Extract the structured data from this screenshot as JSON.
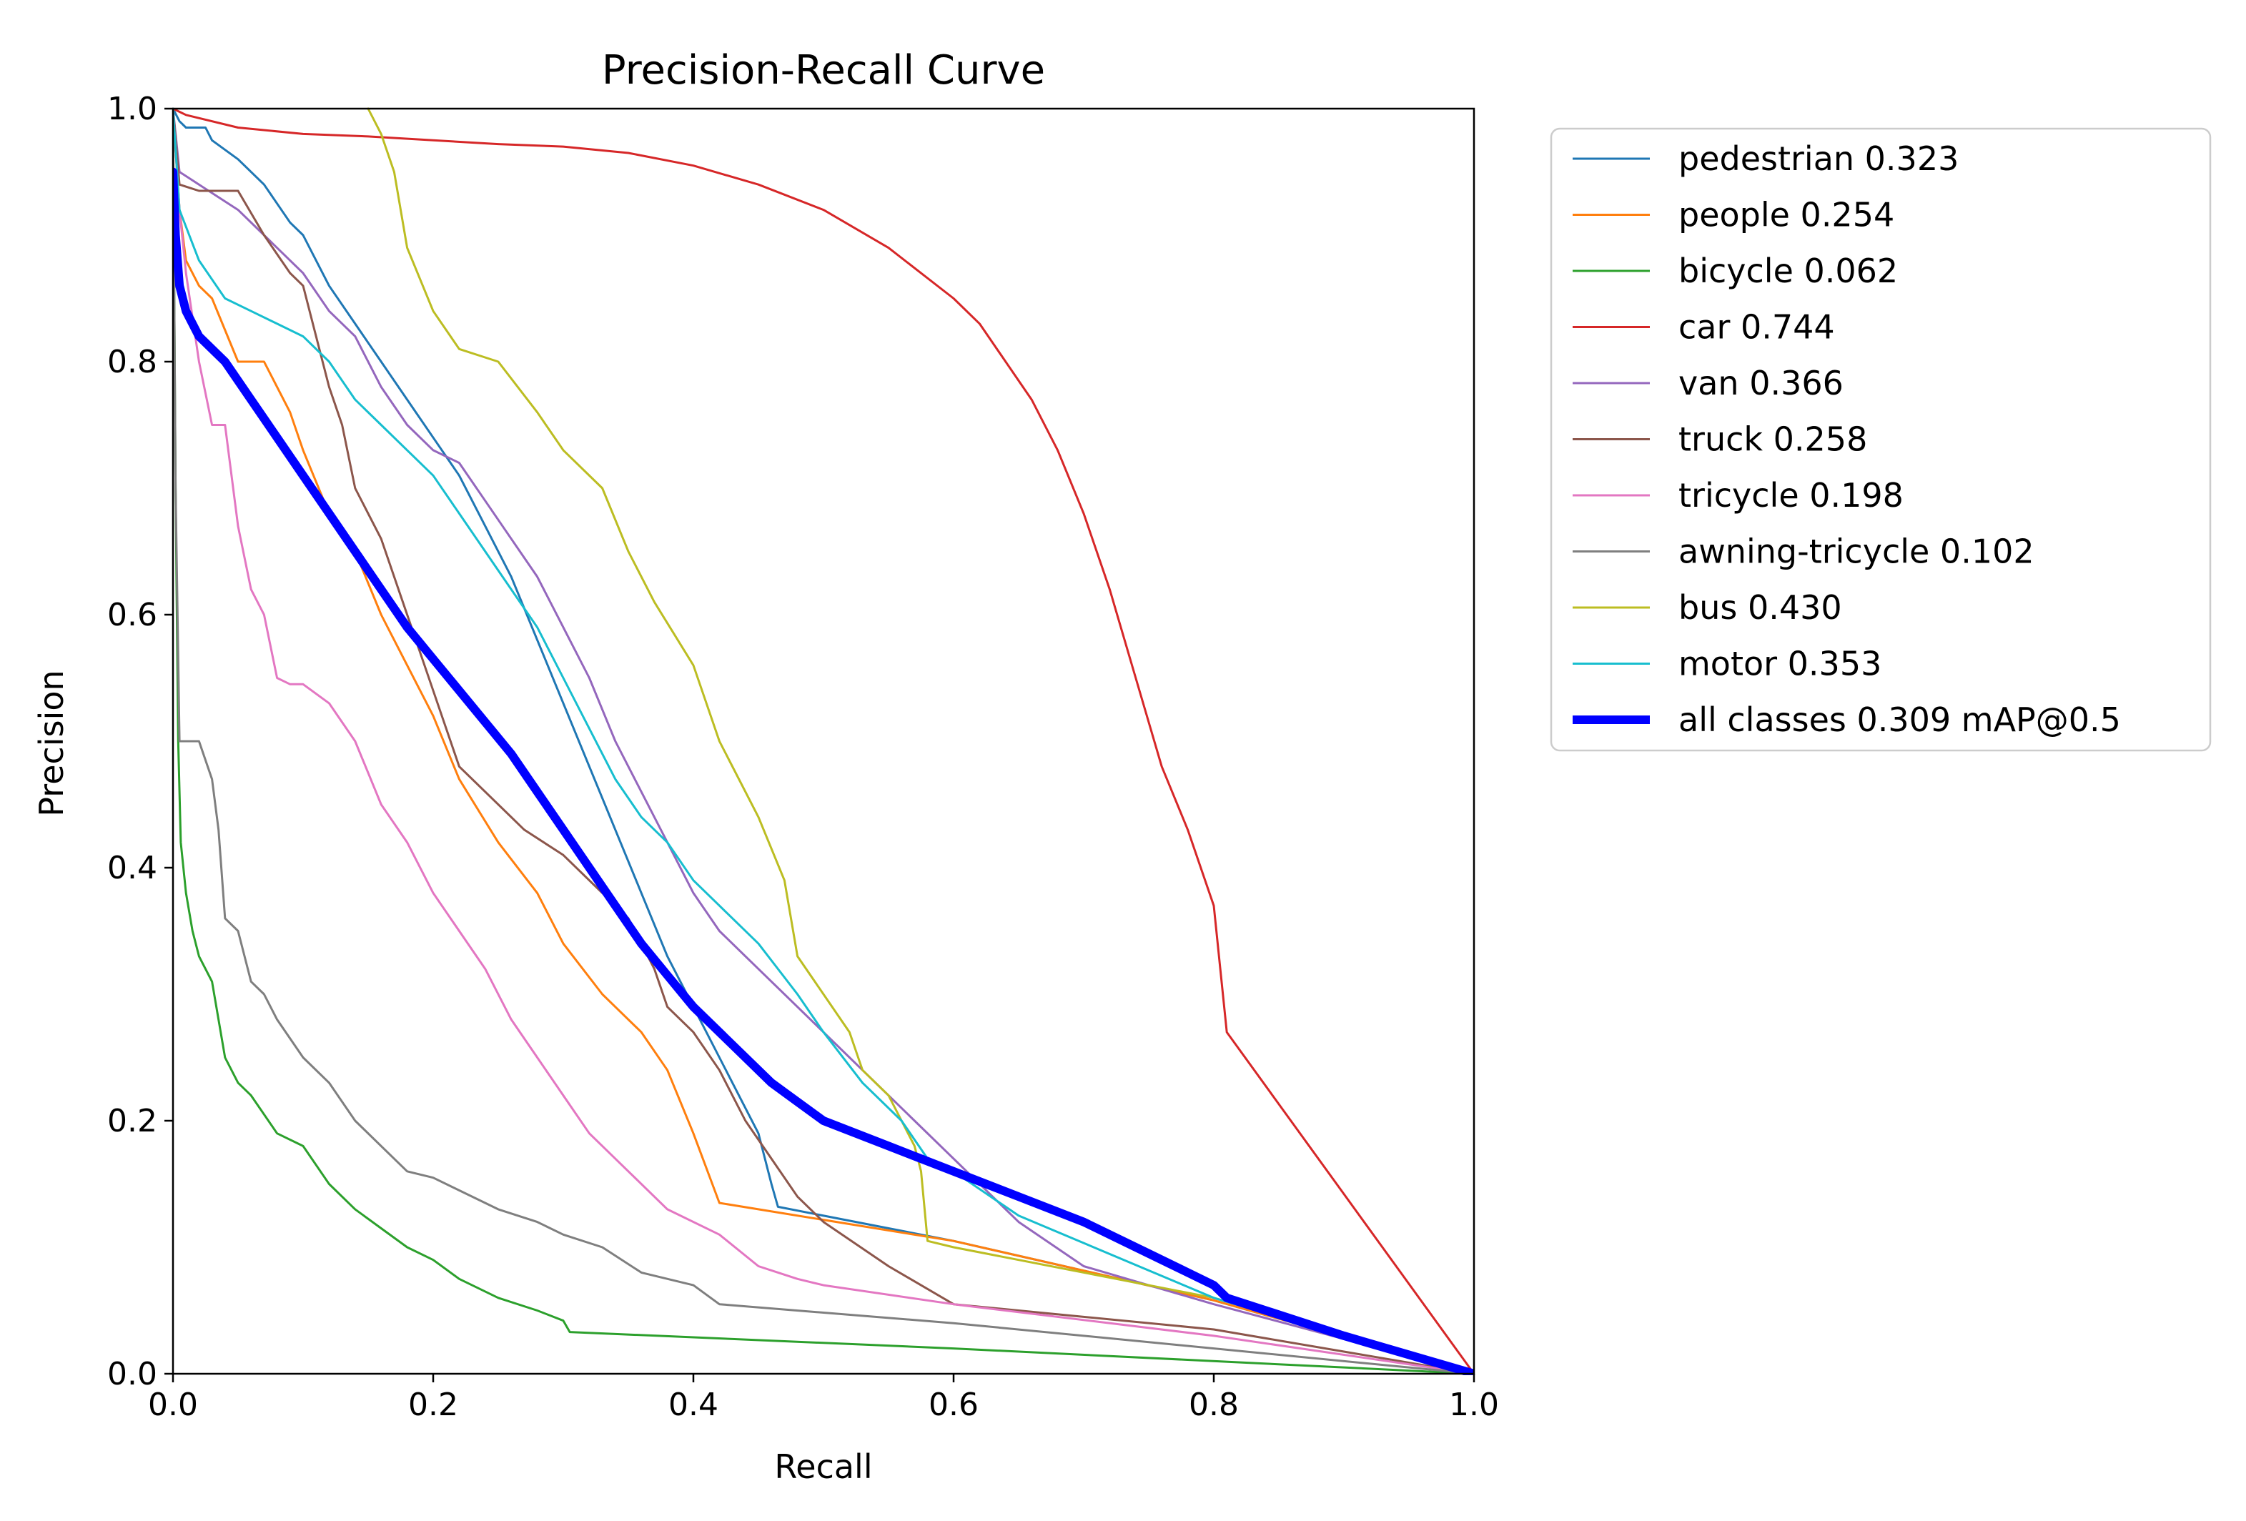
{
  "chart_data": {
    "type": "line",
    "title": "Precision-Recall Curve",
    "xlabel": "Recall",
    "ylabel": "Precision",
    "xlim": [
      0,
      1
    ],
    "ylim": [
      0,
      1
    ],
    "xticks": [
      0.0,
      0.2,
      0.4,
      0.6,
      0.8,
      1.0
    ],
    "yticks": [
      0.0,
      0.2,
      0.4,
      0.6,
      0.8,
      1.0
    ],
    "xtick_labels": [
      "0.0",
      "0.2",
      "0.4",
      "0.6",
      "0.8",
      "1.0"
    ],
    "ytick_labels": [
      "0.0",
      "0.2",
      "0.4",
      "0.6",
      "0.8",
      "1.0"
    ],
    "grid": false,
    "legend_position": "outside-right-top",
    "series": [
      {
        "name": "pedestrian",
        "legend_label": "pedestrian 0.323",
        "color": "#1f77b4",
        "emphasis": false,
        "x": [
          0.0,
          0.005,
          0.01,
          0.025,
          0.03,
          0.05,
          0.07,
          0.09,
          0.1,
          0.12,
          0.14,
          0.16,
          0.18,
          0.2,
          0.22,
          0.24,
          0.26,
          0.28,
          0.3,
          0.32,
          0.34,
          0.36,
          0.38,
          0.4,
          0.42,
          0.44,
          0.45,
          0.46,
          0.465,
          0.6,
          0.8,
          1.0
        ],
        "y": [
          1.0,
          0.99,
          0.985,
          0.985,
          0.975,
          0.96,
          0.94,
          0.91,
          0.9,
          0.86,
          0.83,
          0.8,
          0.77,
          0.74,
          0.71,
          0.67,
          0.63,
          0.58,
          0.53,
          0.48,
          0.43,
          0.38,
          0.33,
          0.29,
          0.25,
          0.21,
          0.19,
          0.15,
          0.132,
          0.105,
          0.058,
          0.0
        ]
      },
      {
        "name": "people",
        "legend_label": "people 0.254",
        "color": "#ff7f0e",
        "emphasis": false,
        "x": [
          0.0,
          0.005,
          0.01,
          0.02,
          0.03,
          0.05,
          0.07,
          0.09,
          0.1,
          0.12,
          0.14,
          0.16,
          0.18,
          0.2,
          0.22,
          0.25,
          0.28,
          0.3,
          0.33,
          0.36,
          0.38,
          0.4,
          0.42,
          0.6,
          0.8,
          1.0
        ],
        "y": [
          1.0,
          0.92,
          0.88,
          0.86,
          0.85,
          0.8,
          0.8,
          0.76,
          0.73,
          0.68,
          0.65,
          0.6,
          0.56,
          0.52,
          0.47,
          0.42,
          0.38,
          0.34,
          0.3,
          0.27,
          0.24,
          0.19,
          0.135,
          0.105,
          0.058,
          0.0
        ]
      },
      {
        "name": "bicycle",
        "legend_label": "bicycle 0.062",
        "color": "#2ca02c",
        "emphasis": false,
        "x": [
          0.0,
          0.002,
          0.004,
          0.006,
          0.01,
          0.015,
          0.02,
          0.03,
          0.04,
          0.05,
          0.06,
          0.08,
          0.1,
          0.12,
          0.14,
          0.16,
          0.18,
          0.2,
          0.22,
          0.25,
          0.28,
          0.3,
          0.305,
          0.6,
          1.0
        ],
        "y": [
          1.0,
          0.7,
          0.5,
          0.42,
          0.38,
          0.35,
          0.33,
          0.31,
          0.25,
          0.23,
          0.22,
          0.19,
          0.18,
          0.15,
          0.13,
          0.115,
          0.1,
          0.09,
          0.075,
          0.06,
          0.05,
          0.042,
          0.033,
          0.02,
          0.0
        ]
      },
      {
        "name": "car",
        "legend_label": "car 0.744",
        "color": "#d62728",
        "emphasis": false,
        "x": [
          0.0,
          0.01,
          0.05,
          0.1,
          0.15,
          0.2,
          0.25,
          0.3,
          0.35,
          0.4,
          0.45,
          0.5,
          0.55,
          0.6,
          0.62,
          0.64,
          0.66,
          0.68,
          0.7,
          0.72,
          0.74,
          0.76,
          0.78,
          0.8,
          0.805,
          0.81,
          1.0
        ],
        "y": [
          1.0,
          0.995,
          0.985,
          0.98,
          0.978,
          0.975,
          0.972,
          0.97,
          0.965,
          0.955,
          0.94,
          0.92,
          0.89,
          0.85,
          0.83,
          0.8,
          0.77,
          0.73,
          0.68,
          0.62,
          0.55,
          0.48,
          0.43,
          0.37,
          0.32,
          0.27,
          0.0
        ]
      },
      {
        "name": "van",
        "legend_label": "van 0.366",
        "color": "#9467bd",
        "emphasis": false,
        "x": [
          0.0,
          0.005,
          0.02,
          0.05,
          0.07,
          0.1,
          0.12,
          0.14,
          0.16,
          0.18,
          0.2,
          0.22,
          0.24,
          0.26,
          0.28,
          0.3,
          0.32,
          0.34,
          0.36,
          0.38,
          0.4,
          0.42,
          0.44,
          0.46,
          0.5,
          0.55,
          0.6,
          0.65,
          0.7,
          0.8,
          1.0
        ],
        "y": [
          1.0,
          0.95,
          0.94,
          0.92,
          0.9,
          0.87,
          0.84,
          0.82,
          0.78,
          0.75,
          0.73,
          0.72,
          0.69,
          0.66,
          0.63,
          0.59,
          0.55,
          0.5,
          0.46,
          0.42,
          0.38,
          0.35,
          0.33,
          0.31,
          0.27,
          0.22,
          0.17,
          0.12,
          0.085,
          0.055,
          0.0
        ]
      },
      {
        "name": "truck",
        "legend_label": "truck 0.258",
        "color": "#8c564b",
        "emphasis": false,
        "x": [
          0.0,
          0.005,
          0.02,
          0.05,
          0.07,
          0.09,
          0.1,
          0.11,
          0.12,
          0.13,
          0.14,
          0.16,
          0.18,
          0.2,
          0.22,
          0.24,
          0.27,
          0.3,
          0.32,
          0.35,
          0.37,
          0.38,
          0.4,
          0.42,
          0.44,
          0.46,
          0.48,
          0.5,
          0.55,
          0.6,
          0.8,
          1.0
        ],
        "y": [
          1.0,
          0.94,
          0.935,
          0.935,
          0.9,
          0.87,
          0.86,
          0.82,
          0.78,
          0.75,
          0.7,
          0.66,
          0.6,
          0.54,
          0.48,
          0.46,
          0.43,
          0.41,
          0.39,
          0.36,
          0.32,
          0.29,
          0.27,
          0.24,
          0.2,
          0.17,
          0.14,
          0.12,
          0.085,
          0.055,
          0.035,
          0.0
        ]
      },
      {
        "name": "tricycle",
        "legend_label": "tricycle 0.198",
        "color": "#e377c2",
        "emphasis": false,
        "x": [
          0.0,
          0.005,
          0.01,
          0.02,
          0.03,
          0.04,
          0.05,
          0.06,
          0.07,
          0.08,
          0.09,
          0.1,
          0.12,
          0.14,
          0.16,
          0.18,
          0.2,
          0.22,
          0.24,
          0.26,
          0.28,
          0.3,
          0.32,
          0.35,
          0.38,
          0.42,
          0.45,
          0.48,
          0.5,
          0.6,
          0.8,
          1.0
        ],
        "y": [
          1.0,
          0.92,
          0.87,
          0.8,
          0.75,
          0.75,
          0.67,
          0.62,
          0.6,
          0.55,
          0.545,
          0.545,
          0.53,
          0.5,
          0.45,
          0.42,
          0.38,
          0.35,
          0.32,
          0.28,
          0.25,
          0.22,
          0.19,
          0.16,
          0.13,
          0.11,
          0.085,
          0.075,
          0.07,
          0.055,
          0.03,
          0.0
        ]
      },
      {
        "name": "awning-tricycle",
        "legend_label": "awning-tricycle 0.102",
        "color": "#7f7f7f",
        "emphasis": false,
        "x": [
          0.0,
          0.002,
          0.005,
          0.02,
          0.03,
          0.035,
          0.04,
          0.05,
          0.06,
          0.07,
          0.08,
          0.1,
          0.12,
          0.14,
          0.16,
          0.18,
          0.2,
          0.25,
          0.28,
          0.3,
          0.33,
          0.36,
          0.4,
          0.42,
          0.6,
          1.0
        ],
        "y": [
          1.0,
          0.7,
          0.5,
          0.5,
          0.47,
          0.43,
          0.36,
          0.35,
          0.31,
          0.3,
          0.28,
          0.25,
          0.23,
          0.2,
          0.18,
          0.16,
          0.155,
          0.13,
          0.12,
          0.11,
          0.1,
          0.08,
          0.07,
          0.055,
          0.04,
          0.0
        ]
      },
      {
        "name": "bus",
        "legend_label": "bus 0.430",
        "color": "#bcbd22",
        "emphasis": false,
        "x": [
          0.15,
          0.16,
          0.17,
          0.18,
          0.2,
          0.22,
          0.25,
          0.28,
          0.3,
          0.33,
          0.35,
          0.37,
          0.4,
          0.42,
          0.45,
          0.47,
          0.48,
          0.5,
          0.52,
          0.53,
          0.55,
          0.56,
          0.57,
          0.575,
          0.58,
          0.6,
          0.8,
          1.0
        ],
        "y": [
          1.0,
          0.98,
          0.95,
          0.89,
          0.84,
          0.81,
          0.8,
          0.76,
          0.73,
          0.7,
          0.65,
          0.61,
          0.56,
          0.5,
          0.44,
          0.39,
          0.33,
          0.3,
          0.27,
          0.24,
          0.22,
          0.2,
          0.18,
          0.16,
          0.105,
          0.1,
          0.06,
          0.0
        ]
      },
      {
        "name": "motor",
        "legend_label": "motor 0.353",
        "color": "#17becf",
        "emphasis": false,
        "x": [
          0.0,
          0.005,
          0.02,
          0.04,
          0.06,
          0.08,
          0.1,
          0.12,
          0.14,
          0.16,
          0.18,
          0.2,
          0.22,
          0.24,
          0.26,
          0.28,
          0.3,
          0.32,
          0.34,
          0.36,
          0.38,
          0.4,
          0.42,
          0.45,
          0.48,
          0.5,
          0.53,
          0.56,
          0.58,
          0.6,
          0.65,
          0.8,
          1.0
        ],
        "y": [
          1.0,
          0.92,
          0.88,
          0.85,
          0.84,
          0.83,
          0.82,
          0.8,
          0.77,
          0.75,
          0.73,
          0.71,
          0.68,
          0.65,
          0.62,
          0.59,
          0.55,
          0.51,
          0.47,
          0.44,
          0.42,
          0.39,
          0.37,
          0.34,
          0.3,
          0.27,
          0.23,
          0.2,
          0.17,
          0.16,
          0.125,
          0.06,
          0.0
        ]
      },
      {
        "name": "all classes",
        "legend_label": "all classes 0.309 mAP@0.5",
        "color": "#0000ff",
        "emphasis": true,
        "x": [
          0.0,
          0.002,
          0.005,
          0.01,
          0.02,
          0.04,
          0.06,
          0.08,
          0.1,
          0.12,
          0.14,
          0.16,
          0.18,
          0.2,
          0.22,
          0.24,
          0.26,
          0.28,
          0.3,
          0.32,
          0.34,
          0.36,
          0.38,
          0.4,
          0.42,
          0.44,
          0.46,
          0.48,
          0.5,
          0.55,
          0.6,
          0.65,
          0.7,
          0.75,
          0.78,
          0.8,
          0.81,
          0.9,
          1.0
        ],
        "y": [
          0.95,
          0.9,
          0.86,
          0.84,
          0.82,
          0.8,
          0.77,
          0.74,
          0.71,
          0.68,
          0.65,
          0.62,
          0.59,
          0.565,
          0.54,
          0.515,
          0.49,
          0.46,
          0.43,
          0.4,
          0.37,
          0.34,
          0.315,
          0.29,
          0.27,
          0.25,
          0.23,
          0.215,
          0.2,
          0.18,
          0.16,
          0.14,
          0.12,
          0.095,
          0.08,
          0.07,
          0.06,
          0.03,
          0.0
        ]
      }
    ]
  }
}
